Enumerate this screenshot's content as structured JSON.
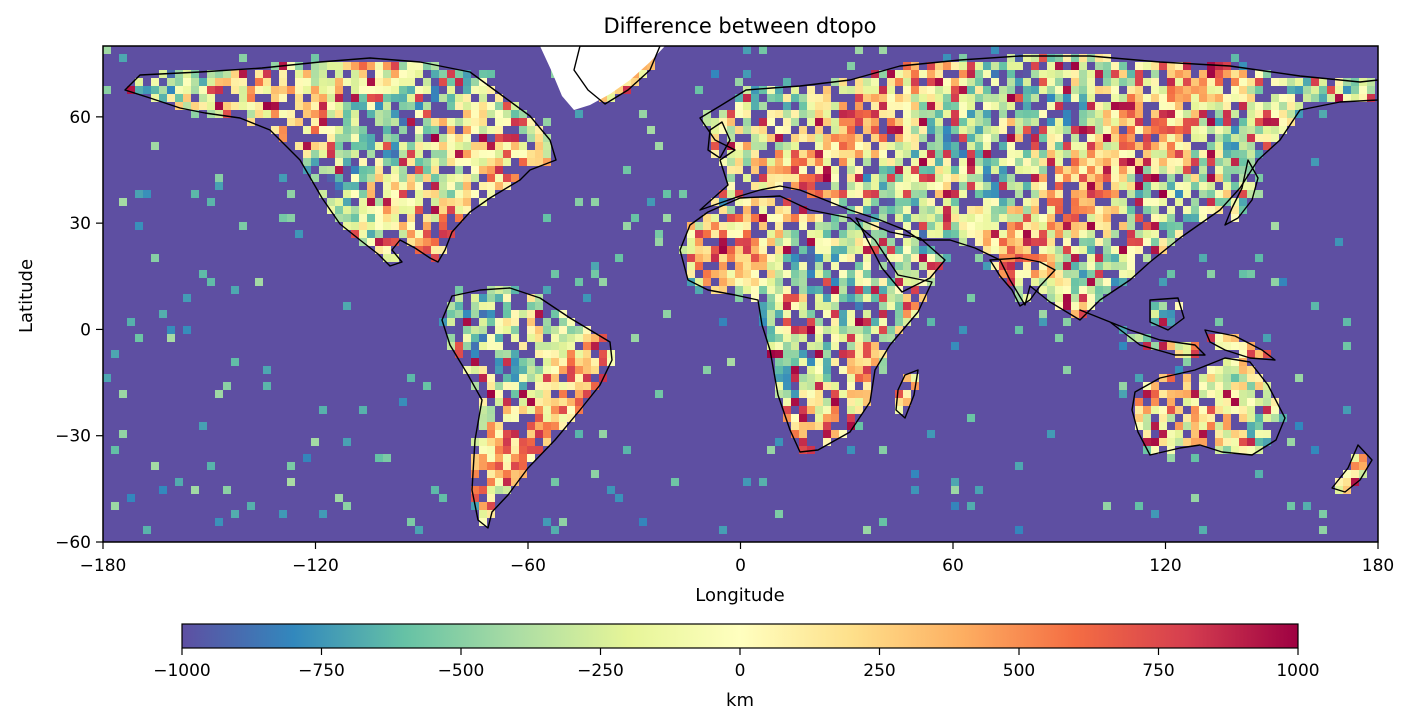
{
  "chart_data": {
    "type": "heatmap",
    "title": "Difference between dtopo",
    "xlabel": "Longitude",
    "ylabel": "Latitude",
    "xlim": [
      -180,
      180
    ],
    "ylim": [
      -60,
      80
    ],
    "x_ticks": [
      -180,
      -120,
      -60,
      0,
      60,
      120,
      180
    ],
    "y_ticks": [
      60,
      30,
      0,
      -30,
      -60
    ],
    "x_tick_labels": [
      "−180",
      "−120",
      "−60",
      "0",
      "60",
      "120",
      "180"
    ],
    "y_tick_labels": [
      "60",
      "30",
      "0",
      "−30",
      "−60"
    ],
    "colormap": "Spectral_r",
    "color_range": [
      -1000,
      1000
    ],
    "colorbar": {
      "label": "km",
      "orientation": "horizontal",
      "placement": "bottom",
      "ticks": [
        -1000,
        -750,
        -500,
        -250,
        0,
        250,
        500,
        750,
        1000
      ],
      "tick_labels": [
        "−1000",
        "−750",
        "−500",
        "−250",
        "0",
        "250",
        "500",
        "750",
        "1000"
      ]
    },
    "ocean_value": -1000,
    "coastlines": true,
    "grid": false
  },
  "colors": {
    "ocean": "#5e4fa2",
    "stops": [
      "#5e4fa2",
      "#3288bd",
      "#66c2a5",
      "#abdda4",
      "#e6f598",
      "#ffffbf",
      "#fee08b",
      "#fdae61",
      "#f46d43",
      "#d53e4f",
      "#9e0142"
    ],
    "coastline": "#000000",
    "missing": "#ffffff"
  }
}
